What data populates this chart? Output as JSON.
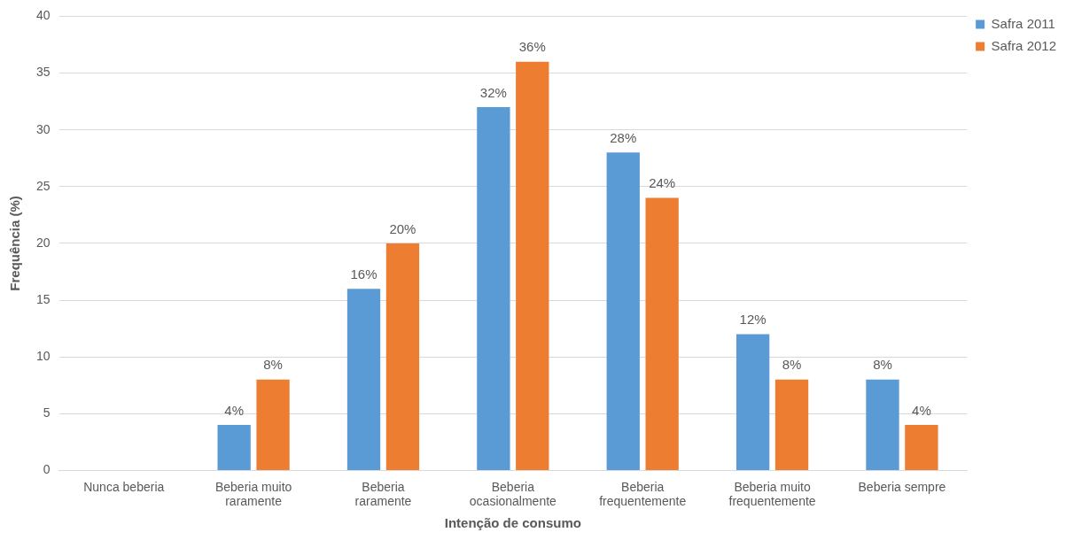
{
  "chart_data": {
    "type": "bar",
    "xlabel": "Intenção de consumo",
    "ylabel": "Frequência (%)",
    "categories": [
      "Nunca beberia",
      "Beberia muito raramente",
      "Beberia raramente",
      "Beberia ocasionalmente",
      "Beberia frequentemente",
      "Beberia muito frequentemente",
      "Beberia sempre"
    ],
    "series": [
      {
        "name": "Safra 2011",
        "color": "#5b9bd5",
        "values": [
          0,
          4,
          16,
          32,
          28,
          12,
          8
        ],
        "value_labels": [
          null,
          "4%",
          "16%",
          "32%",
          "28%",
          "12%",
          "8%"
        ]
      },
      {
        "name": "Safra 2012",
        "color": "#ed7d31",
        "values": [
          0,
          8,
          20,
          36,
          24,
          8,
          4
        ],
        "value_labels": [
          null,
          "8%",
          "20%",
          "36%",
          "24%",
          "8%",
          "4%"
        ]
      }
    ],
    "ylim": [
      0,
      40
    ],
    "yticks": [
      0,
      5,
      10,
      15,
      20,
      25,
      30,
      35,
      40
    ],
    "grid": "y",
    "legend": "top right"
  }
}
